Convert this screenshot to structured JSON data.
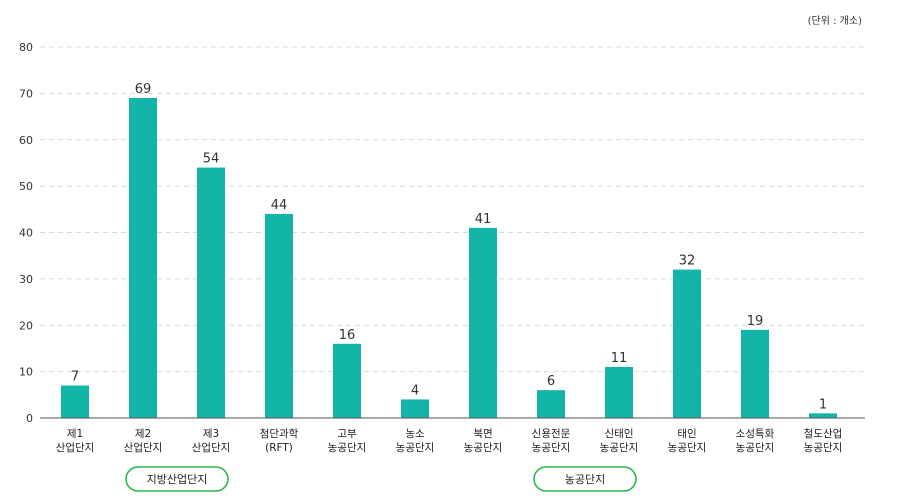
{
  "chart_data": {
    "type": "bar",
    "unit_label": "(단위 : 개소)",
    "ylim": [
      0,
      80
    ],
    "yticks": [
      0,
      10,
      20,
      30,
      40,
      50,
      60,
      70,
      80
    ],
    "grid": true,
    "categories": [
      [
        "제1",
        "산업단지"
      ],
      [
        "제2",
        "산업단지"
      ],
      [
        "제3",
        "산업단지"
      ],
      [
        "첨단과학",
        "(RFT)"
      ],
      [
        "고부",
        "농공단지"
      ],
      [
        "농소",
        "농공단지"
      ],
      [
        "북면",
        "농공단지"
      ],
      [
        "신용전문",
        "농공단지"
      ],
      [
        "신태인",
        "농공단지"
      ],
      [
        "태인",
        "농공단지"
      ],
      [
        "소성특화",
        "농공단지"
      ],
      [
        "철도산업",
        "농공단지"
      ]
    ],
    "values": [
      7,
      69,
      54,
      44,
      16,
      4,
      41,
      6,
      11,
      32,
      19,
      1
    ],
    "groups": [
      {
        "label": "지방산업단지",
        "first": 0,
        "last": 3
      },
      {
        "label": "농공단지",
        "first": 4,
        "last": 11
      }
    ],
    "bar_color": "#12B5A8",
    "group_border_color": "#2DB84B"
  }
}
